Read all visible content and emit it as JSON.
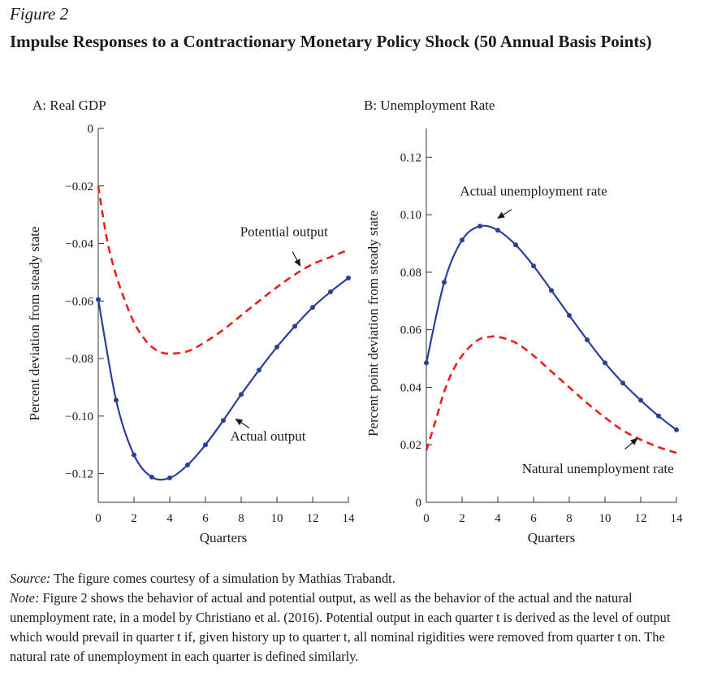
{
  "figure": {
    "label": "Figure 2",
    "title": "Impulse Responses to a Contractionary Monetary Policy Shock (50 Annual Basis Points)"
  },
  "source": {
    "lead": "Source:",
    "text": " The figure comes courtesy of a simulation by Mathias Trabandt."
  },
  "note": {
    "lead": "Note:",
    "text": " Figure 2 shows the behavior of actual and potential output, as well as the behavior of the actual and the natural unemployment rate, in a model by Christiano et al. (2016). Potential output in each quarter t is derived as the level of output which would prevail in quarter t if, given history up to quarter t, all nominal rigidities were removed from quarter t on. The natural rate of unemployment in each quarter is defined similarly."
  },
  "chart_data": [
    {
      "type": "line",
      "title": "A: Real GDP",
      "xlabel": "Quarters",
      "ylabel": "Percent deviation from steady state",
      "xlim": [
        0,
        14
      ],
      "ylim": [
        -0.13,
        0
      ],
      "xticks": [
        0,
        2,
        4,
        6,
        8,
        10,
        12,
        14
      ],
      "yticks": [
        0,
        -0.02,
        -0.04,
        -0.06,
        -0.08,
        -0.1,
        -0.12
      ],
      "ytick_labels": [
        "0",
        "−0.02",
        "−0.04",
        "−0.06",
        "−0.08",
        "−0.10",
        "−0.12"
      ],
      "grid": false,
      "legend": "none",
      "series": [
        {
          "name": "Actual output",
          "color": "#2b3f9a",
          "style": "solid-markers",
          "x": [
            0,
            1,
            2,
            3,
            4,
            5,
            6,
            7,
            8,
            9,
            10,
            11,
            12,
            13,
            14
          ],
          "values": [
            -0.0595,
            -0.0945,
            -0.1135,
            -0.1212,
            -0.1215,
            -0.117,
            -0.11,
            -0.1015,
            -0.0925,
            -0.084,
            -0.076,
            -0.0688,
            -0.0622,
            -0.0568,
            -0.052
          ]
        },
        {
          "name": "Potential output",
          "color": "#e8201c",
          "style": "dashed",
          "x": [
            0,
            0.5,
            1,
            1.5,
            2,
            2.5,
            3,
            3.5,
            4,
            5,
            6,
            7,
            8,
            9,
            10,
            11,
            12,
            13,
            14
          ],
          "values": [
            -0.02,
            -0.039,
            -0.051,
            -0.06,
            -0.0675,
            -0.0725,
            -0.076,
            -0.0778,
            -0.0783,
            -0.0775,
            -0.0742,
            -0.07,
            -0.065,
            -0.06,
            -0.0552,
            -0.0508,
            -0.0472,
            -0.0447,
            -0.0422
          ]
        }
      ],
      "annotations": [
        {
          "text": "Potential output",
          "x": 10.4,
          "y": -0.0374,
          "arrow_to": [
            11.3,
            -0.0478
          ]
        },
        {
          "text": "Actual output",
          "x": 9.5,
          "y": -0.1085,
          "arrow_to": [
            7.7,
            -0.101
          ]
        }
      ]
    },
    {
      "type": "line",
      "title": "B: Unemployment Rate",
      "xlabel": "Quarters",
      "ylabel": "Percent point deviation from steady state",
      "xlim": [
        0,
        14
      ],
      "ylim": [
        0,
        0.13
      ],
      "xticks": [
        0,
        2,
        4,
        6,
        8,
        10,
        12,
        14
      ],
      "yticks": [
        0,
        0.02,
        0.04,
        0.06,
        0.08,
        0.1,
        0.12
      ],
      "ytick_labels": [
        "0",
        "0.02",
        "0.04",
        "0.06",
        "0.08",
        "0.10",
        "0.12"
      ],
      "grid": false,
      "legend": "none",
      "series": [
        {
          "name": "Actual unemployment rate",
          "color": "#2b3f9a",
          "style": "solid-markers",
          "x": [
            0,
            1,
            2,
            3,
            4,
            5,
            6,
            7,
            8,
            9,
            10,
            11,
            12,
            13,
            14
          ],
          "values": [
            0.0485,
            0.0765,
            0.0912,
            0.096,
            0.0946,
            0.0895,
            0.0822,
            0.0737,
            0.065,
            0.0565,
            0.0485,
            0.0415,
            0.0355,
            0.03,
            0.0252
          ]
        },
        {
          "name": "Natural unemployment rate",
          "color": "#e8201c",
          "style": "dashed",
          "x": [
            0,
            0.5,
            1,
            1.5,
            2,
            2.5,
            3,
            3.5,
            4,
            5,
            6,
            7,
            8,
            9,
            10,
            11,
            12,
            13,
            14
          ],
          "values": [
            0.018,
            0.028,
            0.0385,
            0.046,
            0.051,
            0.0545,
            0.0568,
            0.0575,
            0.0576,
            0.0555,
            0.051,
            0.0455,
            0.04,
            0.0345,
            0.0295,
            0.025,
            0.0218,
            0.0192,
            0.0172
          ]
        }
      ],
      "annotations": [
        {
          "text": "Actual unemployment rate",
          "x": 6.0,
          "y": 0.1067,
          "arrow_to": [
            4.0,
            0.0988
          ]
        },
        {
          "text": "Natural unemployment rate",
          "x": 9.6,
          "y": 0.0102,
          "arrow_to": [
            11.8,
            0.0222
          ]
        }
      ]
    }
  ]
}
